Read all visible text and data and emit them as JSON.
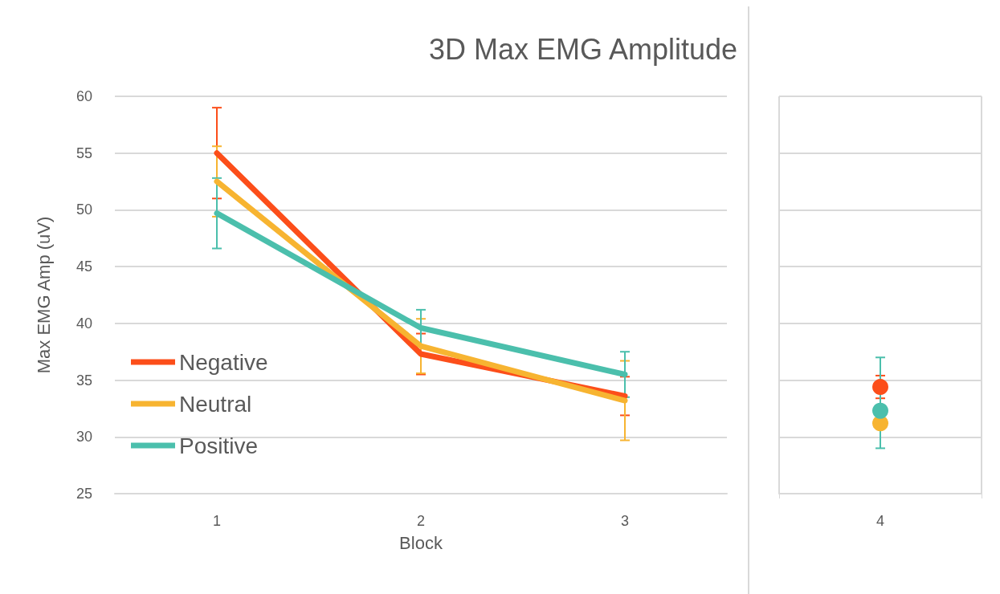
{
  "chart_data": [
    {
      "type": "line",
      "title": "3D Max EMG Amplitude",
      "xlabel": "Block",
      "ylabel": "Max EMG Amp (uV)",
      "categories": [
        "1",
        "2",
        "3"
      ],
      "ylim": [
        25,
        60
      ],
      "yticks": [
        25,
        30,
        35,
        40,
        45,
        50,
        55,
        60
      ],
      "grid": "y",
      "legend": "bottom left",
      "marker": "none",
      "line_style": "solid",
      "series": [
        {
          "name": "Negative",
          "color": "#fc4e1a",
          "values": [
            55.0,
            37.3,
            33.6
          ],
          "errors": [
            4.0,
            1.8,
            1.7
          ]
        },
        {
          "name": "Neutral",
          "color": "#f7b431",
          "values": [
            52.5,
            38.0,
            33.2
          ],
          "errors": [
            3.1,
            2.4,
            3.5
          ]
        },
        {
          "name": "Positive",
          "color": "#4bbfac",
          "values": [
            49.7,
            39.6,
            35.5
          ],
          "errors": [
            3.1,
            1.6,
            2.0
          ]
        }
      ]
    },
    {
      "type": "scatter",
      "categories": [
        "4"
      ],
      "ylim": [
        25,
        60
      ],
      "yticks": [
        25,
        30,
        35,
        40,
        45,
        50,
        55,
        60
      ],
      "tick_labels": "x",
      "grid": true,
      "marker": "circle",
      "series": [
        {
          "color": "#fc4e1a",
          "values": [
            34.4
          ],
          "errors": [
            1.0
          ]
        },
        {
          "color": "#f7b431",
          "values": [
            31.2
          ]
        },
        {
          "color": "#4bbfac",
          "values": [
            32.3
          ],
          "errors": [
            [
              29.0,
              37.0
            ]
          ]
        }
      ]
    }
  ]
}
